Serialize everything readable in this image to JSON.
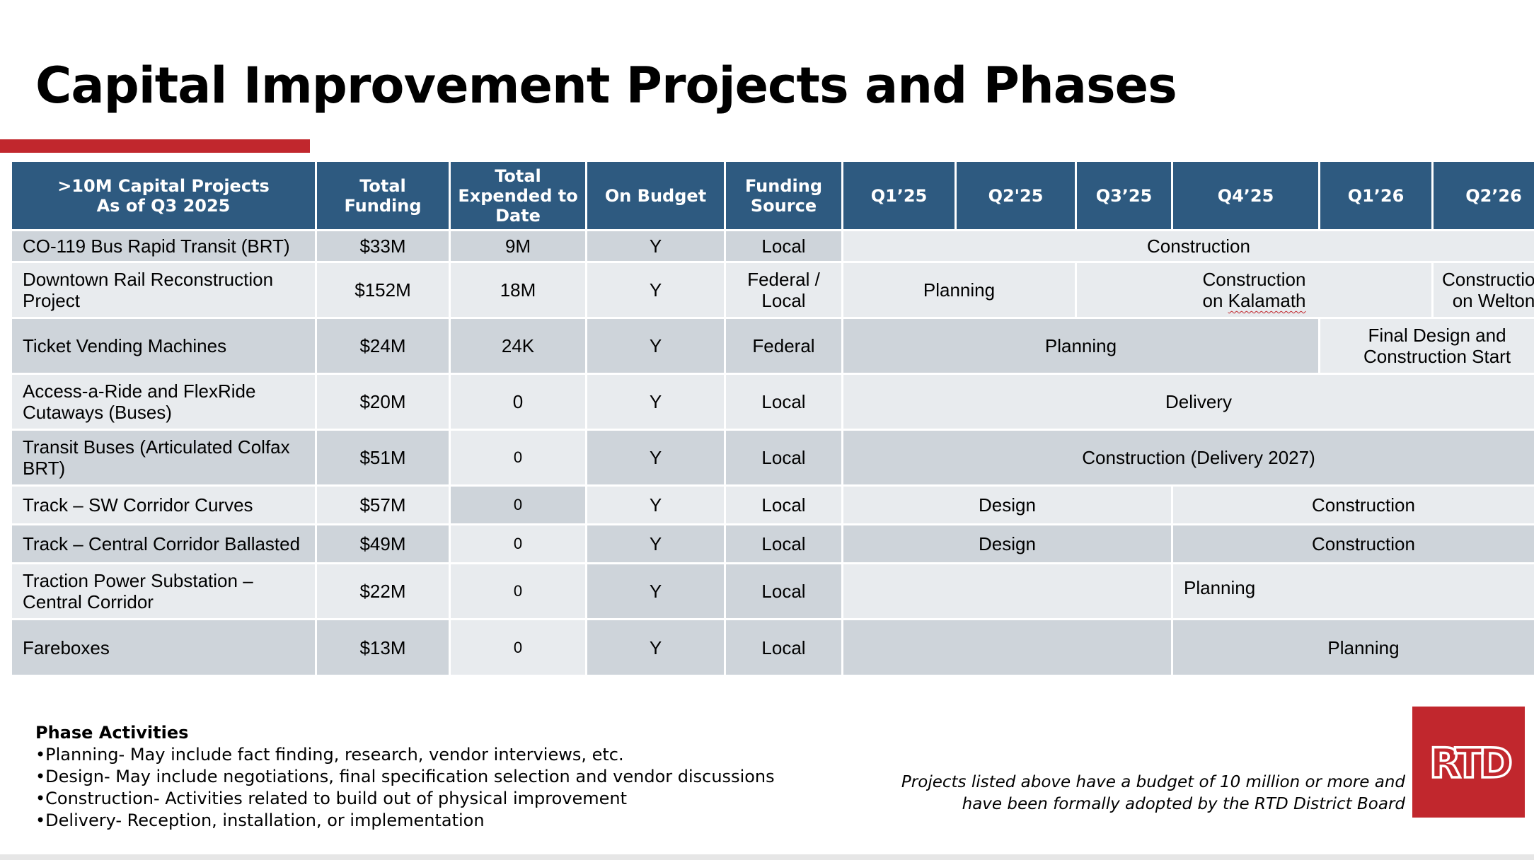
{
  "title": "Capital Improvement Projects and Phases",
  "colors": {
    "header_bg": "#2e5a80",
    "accent_red": "#c1272d",
    "row_light": "#e8ebee",
    "row_dark": "#ced4da"
  },
  "table": {
    "headers": [
      ">10M Capital Projects\nAs of Q3 2025",
      "Total\nFunding",
      "Total\nExpended to\nDate",
      "On Budget",
      "Funding\nSource",
      "Q1’25",
      "Q2'25",
      "Q3’25",
      "Q4’25",
      "Q1’26",
      "Q2’26"
    ],
    "rows": [
      {
        "project": "CO-119 Bus Rapid Transit (BRT)",
        "funding": "$33M",
        "expended": "9M",
        "on_budget": "Y",
        "source": "Local",
        "phases": [
          "Construction"
        ]
      },
      {
        "project": "Downtown Rail Reconstruction\nProject",
        "funding": "$152M",
        "expended": "18M",
        "on_budget": "Y",
        "source": "Federal /\nLocal",
        "phases": [
          "Planning",
          "Construction",
          "on Kalamath",
          "Construction\non Welton"
        ]
      },
      {
        "project": "Ticket Vending Machines",
        "funding": "$24M",
        "expended": "24K",
        "on_budget": "Y",
        "source": "Federal",
        "phases": [
          "Planning",
          "Final Design and\nConstruction Start"
        ]
      },
      {
        "project": "Access-a-Ride and FlexRide\nCutaways (Buses)",
        "funding": "$20M",
        "expended": "0",
        "on_budget": "Y",
        "source": "Local",
        "phases": [
          "Delivery"
        ]
      },
      {
        "project": "Transit Buses (Articulated Colfax\nBRT)",
        "funding": "$51M",
        "expended": "0",
        "on_budget": "Y",
        "source": "Local",
        "phases": [
          "Construction (Delivery 2027)"
        ]
      },
      {
        "project": "Track – SW Corridor Curves",
        "funding": "$57M",
        "expended": "0",
        "on_budget": "Y",
        "source": "Local",
        "phases": [
          "Design",
          "Construction"
        ]
      },
      {
        "project": "Track – Central Corridor Ballasted",
        "funding": "$49M",
        "expended": "0",
        "on_budget": "Y",
        "source": "Local",
        "phases": [
          "Design",
          "Construction"
        ]
      },
      {
        "project": "Traction Power Substation –\nCentral Corridor",
        "funding": "$22M",
        "expended": "0",
        "on_budget": "Y",
        "source": "Local",
        "phases": [
          "",
          "Planning"
        ]
      },
      {
        "project": "Fareboxes",
        "funding": "$13M",
        "expended": "0",
        "on_budget": "Y",
        "source": "Local",
        "phases": [
          "",
          "Planning"
        ]
      }
    ]
  },
  "phase_activities": {
    "title": "Phase Activities",
    "items": [
      "•Planning- May include fact finding, research, vendor interviews, etc.",
      "•Design- May include negotiations, final specification selection and vendor discussions",
      "•Construction- Activities related to  build out of physical improvement",
      "•Delivery- Reception, installation, or implementation"
    ]
  },
  "footnote": "Projects listed above have a budget of 10 million or more and\nhave been formally adopted by the RTD District Board",
  "logo": {
    "text": "RTD",
    "icon": "rtd-logo"
  }
}
